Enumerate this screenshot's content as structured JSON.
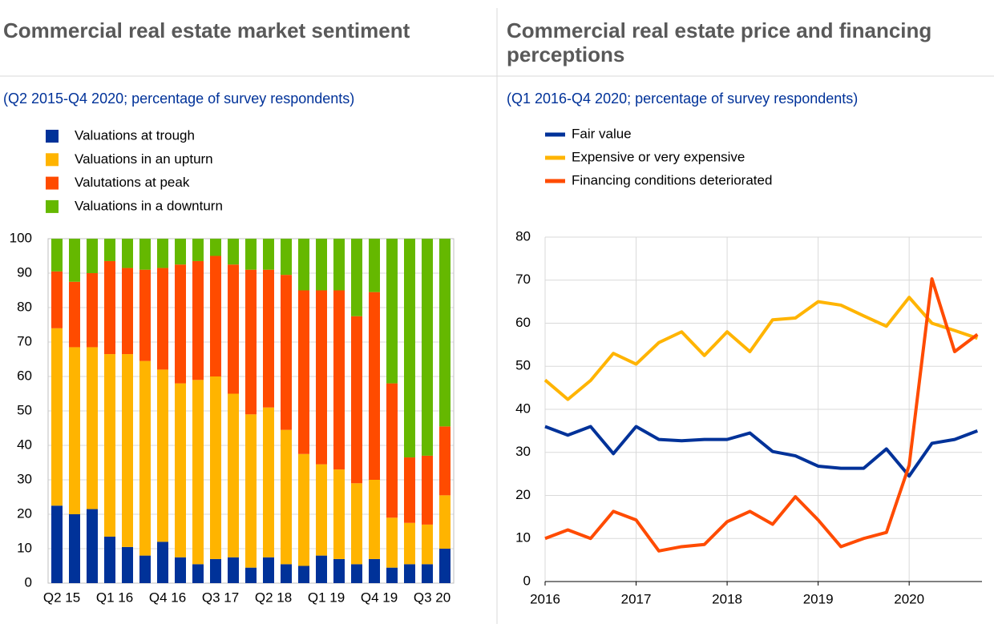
{
  "chart_data": [
    {
      "type": "bar",
      "stacked": true,
      "title": "Commercial real estate market sentiment",
      "subtitle": "(Q2 2015-Q4 2020; percentage of survey respondents)",
      "categories": [
        "Q2 15",
        null,
        null,
        "Q1 16",
        null,
        null,
        "Q4 16",
        null,
        null,
        "Q3 17",
        null,
        null,
        "Q2 18",
        null,
        null,
        "Q1 19",
        null,
        null,
        "Q4 19",
        null,
        null,
        "Q3 20",
        null
      ],
      "series": [
        {
          "name": "Valuations at trough",
          "color": "#003299",
          "values": [
            22.5,
            20,
            21.5,
            13.5,
            10.5,
            8,
            12,
            7.5,
            5.5,
            7,
            7.5,
            4.5,
            7.5,
            5.5,
            5,
            8,
            7,
            5.5,
            7,
            4.5,
            5.5,
            5.5,
            10
          ]
        },
        {
          "name": "Valuations in an upturn",
          "color": "#ffb400",
          "values": [
            51.5,
            48.5,
            47,
            53,
            56,
            56.5,
            50,
            50.5,
            53.5,
            53,
            47.5,
            44.5,
            43.5,
            39,
            32.5,
            26.5,
            26,
            23.5,
            23,
            14.5,
            12,
            11.5,
            15.5
          ]
        },
        {
          "name": "Valutations at peak",
          "color": "#ff4b00",
          "values": [
            16.5,
            19,
            21.5,
            27,
            25,
            26.5,
            29.5,
            34.5,
            34.5,
            35,
            37.5,
            42,
            40,
            45,
            47.5,
            50.5,
            52,
            48.5,
            54.5,
            39,
            19,
            20,
            20
          ]
        },
        {
          "name": "Valuations in a downturn",
          "color": "#65b800",
          "values": [
            9.5,
            12.5,
            10,
            6.5,
            8.5,
            9,
            8.5,
            7.5,
            6.5,
            5,
            7.5,
            9,
            9,
            10.5,
            15,
            15,
            15,
            22.5,
            15.5,
            42,
            63.5,
            63,
            54.5
          ]
        }
      ],
      "ylim": [
        0,
        100
      ],
      "yticks": [
        0,
        10,
        20,
        30,
        40,
        50,
        60,
        70,
        80,
        90,
        100
      ],
      "grid": true
    },
    {
      "type": "line",
      "title": "Commercial real estate price and financing perceptions",
      "subtitle": "(Q1 2016-Q4 2020; percentage of survey respondents)",
      "x": [
        2016,
        2016.25,
        2016.5,
        2016.75,
        2017,
        2017.25,
        2017.5,
        2017.75,
        2018,
        2018.25,
        2018.5,
        2018.75,
        2019,
        2019.25,
        2019.5,
        2019.75,
        2020,
        2020.25,
        2020.5,
        2020.75
      ],
      "series": [
        {
          "name": "Fair value",
          "color": "#003299",
          "values": [
            36,
            34,
            36,
            29.7,
            36,
            33,
            32.7,
            33,
            33,
            34.5,
            30.2,
            29.2,
            26.8,
            26.3,
            26.3,
            30.8,
            24.5,
            32.1,
            33,
            35
          ]
        },
        {
          "name": "Expensive or very expensive",
          "color": "#ffb400",
          "values": [
            46.8,
            42.3,
            46.7,
            53,
            50.5,
            55.5,
            58,
            52.5,
            58,
            53.4,
            60.8,
            61.2,
            65,
            64.2,
            61.7,
            59.3,
            66,
            60,
            58.3,
            56.5
          ]
        },
        {
          "name": "Financing conditions deteriorated",
          "color": "#ff4b00",
          "values": [
            10,
            12,
            10,
            16.3,
            14.3,
            7.1,
            8.1,
            8.6,
            13.9,
            16.3,
            13.3,
            19.7,
            14.3,
            8.1,
            10,
            11.4,
            27,
            70.3,
            53.4,
            57.4
          ]
        }
      ],
      "xlim": [
        2016,
        2020.8
      ],
      "xticks": [
        2016,
        2017,
        2018,
        2019,
        2020
      ],
      "ylim": [
        0,
        80
      ],
      "yticks": [
        0,
        10,
        20,
        30,
        40,
        50,
        60,
        70,
        80
      ],
      "grid": true
    }
  ]
}
